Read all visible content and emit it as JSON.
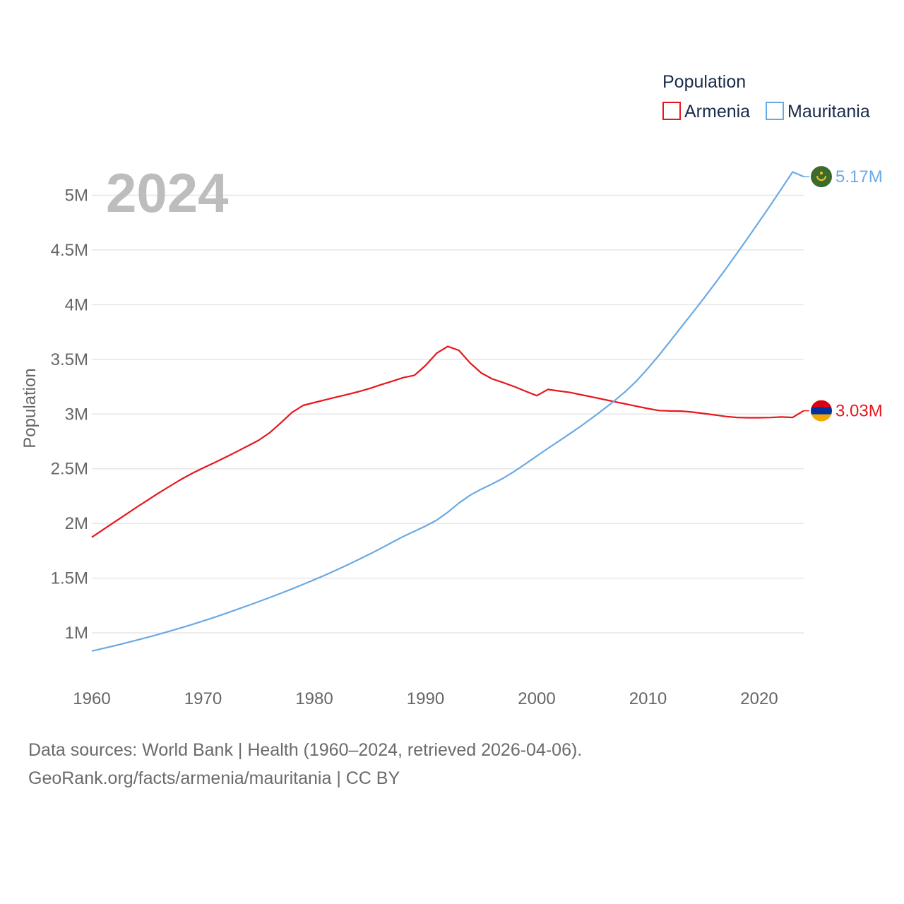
{
  "chart_data": {
    "type": "line",
    "title": "",
    "year_label": "2024",
    "xlabel": "",
    "ylabel": "Population",
    "xlim": [
      1960,
      2024
    ],
    "ylim": [
      600000,
      5300000
    ],
    "x_ticks": [
      1960,
      1970,
      1980,
      1990,
      2000,
      2010,
      2020
    ],
    "x_tick_labels": [
      "1960",
      "1970",
      "1980",
      "1990",
      "2000",
      "2010",
      "2020"
    ],
    "y_ticks": [
      1000000,
      1500000,
      2000000,
      2500000,
      3000000,
      3500000,
      4000000,
      4500000,
      5000000
    ],
    "y_tick_labels": [
      "1M",
      "1.5M",
      "2M",
      "2.5M",
      "3M",
      "3.5M",
      "4M",
      "4.5M",
      "5M"
    ],
    "legend": {
      "title": "Population",
      "position": "top-right",
      "entries": [
        "Armenia",
        "Mauritania"
      ]
    },
    "x": [
      1960,
      1961,
      1962,
      1963,
      1964,
      1965,
      1966,
      1967,
      1968,
      1969,
      1970,
      1971,
      1972,
      1973,
      1974,
      1975,
      1976,
      1977,
      1978,
      1979,
      1980,
      1981,
      1982,
      1983,
      1984,
      1985,
      1986,
      1987,
      1988,
      1989,
      1990,
      1991,
      1992,
      1993,
      1994,
      1995,
      1996,
      1997,
      1998,
      1999,
      2000,
      2001,
      2002,
      2003,
      2004,
      2005,
      2006,
      2007,
      2008,
      2009,
      2010,
      2011,
      2012,
      2013,
      2014,
      2015,
      2016,
      2017,
      2018,
      2019,
      2020,
      2021,
      2022,
      2023,
      2024
    ],
    "series": [
      {
        "name": "Armenia",
        "color": "#e8161b",
        "end_label": "3.03M",
        "values": [
          1874000,
          1942000,
          2010000,
          2078000,
          2146000,
          2212000,
          2277000,
          2340000,
          2401000,
          2457000,
          2507000,
          2555000,
          2604000,
          2655000,
          2707000,
          2760000,
          2830000,
          2920000,
          3015000,
          3079000,
          3105000,
          3130000,
          3155000,
          3180000,
          3205000,
          3235000,
          3268000,
          3300000,
          3333000,
          3354000,
          3444000,
          3556000,
          3618000,
          3582000,
          3468000,
          3376000,
          3321000,
          3287000,
          3250000,
          3208000,
          3168000,
          3225000,
          3211000,
          3197000,
          3176000,
          3155000,
          3134000,
          3113000,
          3092000,
          3071000,
          3050000,
          3032000,
          3028000,
          3027000,
          3018000,
          3005000,
          2992000,
          2978000,
          2969000,
          2966000,
          2966000,
          2968000,
          2973000,
          2969000,
          3030000
        ]
      },
      {
        "name": "Mauritania",
        "color": "#6aaae4",
        "end_label": "5.17M",
        "values": [
          834000,
          857000,
          881000,
          906000,
          932000,
          959000,
          986000,
          1015000,
          1045000,
          1076000,
          1108000,
          1141000,
          1176000,
          1212000,
          1248000,
          1285000,
          1323000,
          1362000,
          1402000,
          1443000,
          1486000,
          1529000,
          1575000,
          1622000,
          1671000,
          1721000,
          1773000,
          1827000,
          1881000,
          1928000,
          1976000,
          2030000,
          2102000,
          2186000,
          2257000,
          2313000,
          2362000,
          2414000,
          2477000,
          2546000,
          2616000,
          2686000,
          2754000,
          2822000,
          2892000,
          2966000,
          3043000,
          3123000,
          3208000,
          3306000,
          3419000,
          3539000,
          3667000,
          3797000,
          3925000,
          4056000,
          4190000,
          4328000,
          4470000,
          4614000,
          4760000,
          4908000,
          5060000,
          5213000,
          5170000
        ]
      }
    ]
  },
  "flags": {
    "armenia": {
      "colors": [
        "#d90012",
        "#0033a0",
        "#f2a800"
      ]
    },
    "mauritania": {
      "colors": [
        "#3d6b2e",
        "#f5c518"
      ]
    }
  },
  "source": {
    "line1": "Data sources: World Bank | Health (1960–2024, retrieved 2026-04-06).",
    "line2": "GeoRank.org/facts/armenia/mauritania | CC BY"
  }
}
